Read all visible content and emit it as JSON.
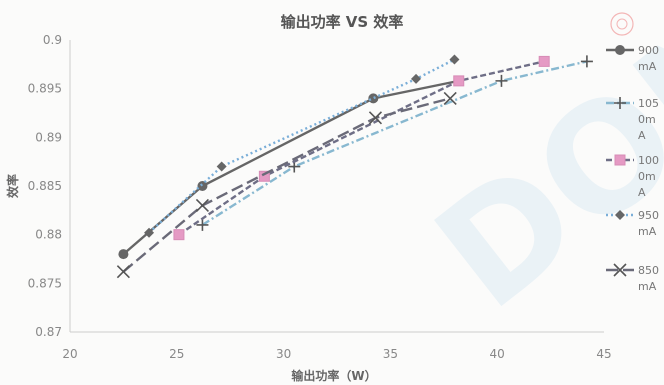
{
  "chart_data": {
    "type": "line",
    "title": "输出功率 VS 效率",
    "xlabel": "输出功率（W）",
    "ylabel": "效率",
    "xlim": [
      20,
      45
    ],
    "ylim": [
      0.87,
      0.9
    ],
    "x_ticks": [
      "20",
      "25",
      "30",
      "35",
      "40",
      "45"
    ],
    "y_ticks": [
      "0.87",
      "0.875",
      "0.88",
      "0.885",
      "0.89",
      "0.895",
      "0.9"
    ],
    "grid": false,
    "legend_position": "right",
    "series": [
      {
        "name": "900mA",
        "legend_lines": [
          "900",
          "mA"
        ],
        "color": "#666666",
        "dash": "",
        "marker": "circle",
        "points": [
          [
            22.5,
            0.878
          ],
          [
            26.2,
            0.885
          ],
          [
            34.2,
            0.894
          ],
          [
            38.2,
            0.8958
          ]
        ]
      },
      {
        "name": "1050mA",
        "legend_lines": [
          "105",
          "0m",
          "A"
        ],
        "color": "#88b8d0",
        "dash": "8,3,2,3",
        "marker": "plus",
        "points": [
          [
            26.2,
            0.881
          ],
          [
            30.5,
            0.887
          ],
          [
            40.2,
            0.8958
          ],
          [
            44.2,
            0.8978
          ]
        ]
      },
      {
        "name": "1000mA",
        "legend_lines": [
          "100",
          "0m",
          "A"
        ],
        "color": "#6e6e86",
        "dash": "6,3",
        "marker": "square",
        "points": [
          [
            25.1,
            0.88
          ],
          [
            29.1,
            0.886
          ],
          [
            38.2,
            0.8958
          ],
          [
            42.2,
            0.8978
          ]
        ]
      },
      {
        "name": "950mA",
        "legend_lines": [
          "950",
          "mA"
        ],
        "color": "#7aaed8",
        "dash": "2,3",
        "marker": "diamond",
        "points": [
          [
            23.7,
            0.8802
          ],
          [
            27.1,
            0.887
          ],
          [
            36.2,
            0.896
          ],
          [
            38.0,
            0.898
          ]
        ]
      },
      {
        "name": "850mA",
        "legend_lines": [
          "850",
          "mA"
        ],
        "color": "#6a6a78",
        "dash": "12,5",
        "marker": "x",
        "points": [
          [
            22.5,
            0.8762
          ],
          [
            26.2,
            0.883
          ],
          [
            34.3,
            0.892
          ],
          [
            37.8,
            0.894
          ]
        ]
      }
    ]
  }
}
